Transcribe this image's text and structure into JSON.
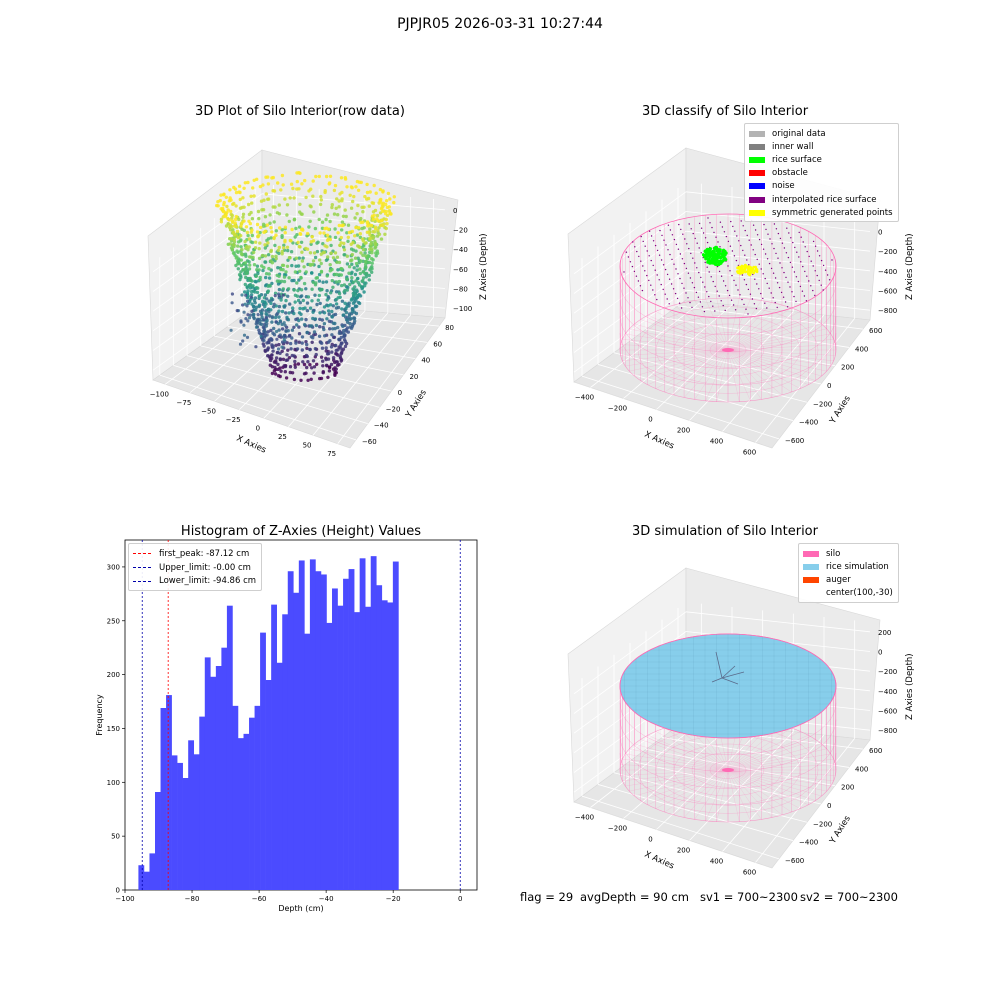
{
  "suptitle": "PJPJR05 2026-03-31 10:27:44",
  "panels": {
    "raw": {
      "title": "3D Plot of Silo Interior(row data)",
      "xlabel": "X Axies",
      "ylabel": "Y Axies",
      "zlabel": "Z Axies (Depth)",
      "xticks": [
        "−100",
        "−75",
        "−50",
        "−25",
        "0",
        "25",
        "50",
        "75"
      ],
      "yticks": [
        "−60",
        "−40",
        "−20",
        "0",
        "20",
        "40",
        "60",
        "80"
      ],
      "zticks": [
        "0",
        "−20",
        "−40",
        "−60",
        "−80",
        "−100"
      ]
    },
    "classify": {
      "title": "3D classify of Silo Interior",
      "xlabel": "X Axies",
      "ylabel": "Y Axies",
      "zlabel": "Z Axies (Depth)",
      "xticks": [
        "−400",
        "−200",
        "0",
        "200",
        "400",
        "600"
      ],
      "yticks": [
        "−600",
        "−400",
        "−200",
        "0",
        "200",
        "400",
        "600"
      ],
      "zticks": [
        "200",
        "0",
        "−200",
        "−400",
        "−600",
        "−800"
      ],
      "legend": [
        {
          "label": "original data",
          "color": "#b3b3b3"
        },
        {
          "label": "inner wall",
          "color": "#808080"
        },
        {
          "label": "rice surface",
          "color": "#00ff00"
        },
        {
          "label": "obstacle",
          "color": "#ff0000"
        },
        {
          "label": "noise",
          "color": "#0000ff"
        },
        {
          "label": "interpolated rice surface",
          "color": "#800080"
        },
        {
          "label": "symmetric generated points",
          "color": "#ffff00"
        }
      ]
    },
    "simulation": {
      "title": "3D simulation of Silo Interior",
      "xlabel": "X Axies",
      "ylabel": "Y Axies",
      "zlabel": "Z Axies (Depth)",
      "xticks": [
        "−400",
        "−200",
        "0",
        "200",
        "400",
        "600"
      ],
      "yticks": [
        "−600",
        "−400",
        "−200",
        "0",
        "200",
        "400",
        "600"
      ],
      "zticks": [
        "200",
        "0",
        "−200",
        "−400",
        "−600",
        "−800"
      ],
      "legend": [
        {
          "label": "silo",
          "color": "#ff69b4"
        },
        {
          "label": "rice simulation",
          "color": "#87ceeb"
        },
        {
          "label": "auger",
          "color": "#ff4500"
        },
        {
          "label": "center(100,-30)",
          "color": ""
        }
      ]
    }
  },
  "status": {
    "flag": "flag = 29",
    "avg_depth": "avgDepth = 90 cm",
    "sv1": "sv1 = 700~2300",
    "sv2": "sv2 = 700~2300"
  },
  "chart_data": [
    {
      "type": "histogram",
      "title": "Histogram of Z-Axies (Height) Values",
      "xlabel": "Depth (cm)",
      "ylabel": "Frequency",
      "bar_color": "#4b4bff",
      "bin_start": -96.0,
      "bin_width": 1.65,
      "values": [
        23,
        17,
        34,
        91,
        169,
        181,
        125,
        118,
        104,
        139,
        126,
        161,
        216,
        198,
        208,
        225,
        264,
        171,
        141,
        145,
        160,
        171,
        239,
        195,
        265,
        211,
        256,
        296,
        276,
        306,
        238,
        307,
        296,
        293,
        248,
        280,
        264,
        289,
        298,
        258,
        308,
        263,
        310,
        283,
        269,
        267,
        305
      ],
      "xlim": [
        -100,
        5
      ],
      "ylim": [
        0,
        325
      ],
      "xticks": [
        -100,
        -80,
        -60,
        -40,
        -20,
        0
      ],
      "yticks": [
        0,
        50,
        100,
        150,
        200,
        250,
        300
      ],
      "xtick_labels": [
        "−100",
        "−80",
        "−60",
        "−40",
        "−20",
        "0"
      ],
      "ytick_labels": [
        "0",
        "50",
        "100",
        "150",
        "200",
        "250",
        "300"
      ],
      "vlines": [
        {
          "label": "first_peak: -87.12 cm",
          "x": -87.12,
          "color": "#ff0000"
        },
        {
          "label": "Upper_limit: -0.00 cm",
          "x": 0.0,
          "color": "#0000aa"
        },
        {
          "label": "Lower_limit: -94.86 cm",
          "x": -94.86,
          "color": "#0000aa"
        }
      ],
      "legend_position": "upper-left"
    }
  ]
}
